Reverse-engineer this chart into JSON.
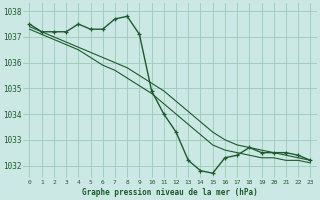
{
  "background_color": "#cce8e4",
  "grid_color": "#99ccbb",
  "line_color": "#1a5c2a",
  "title": "Graphe pression niveau de la mer (hPa)",
  "xlim": [
    -0.5,
    23.5
  ],
  "ylim": [
    1031.5,
    1038.3
  ],
  "yticks": [
    1032,
    1033,
    1034,
    1035,
    1036,
    1037,
    1038
  ],
  "xticks": [
    0,
    1,
    2,
    3,
    4,
    5,
    6,
    7,
    8,
    9,
    10,
    11,
    12,
    13,
    14,
    15,
    16,
    17,
    18,
    19,
    20,
    21,
    22,
    23
  ],
  "curve1_x": [
    0,
    1,
    2,
    3,
    4,
    5,
    6,
    7,
    8,
    9,
    10,
    11,
    12,
    13,
    14,
    15,
    16,
    17,
    18,
    19,
    20,
    21,
    22,
    23
  ],
  "curve1_y": [
    1037.5,
    1037.2,
    1037.2,
    1037.2,
    1037.5,
    1037.3,
    1037.3,
    1037.7,
    1037.8,
    1037.1,
    1034.9,
    1034.0,
    1033.3,
    1032.2,
    1031.8,
    1031.7,
    1032.3,
    1032.4,
    1032.7,
    1032.5,
    1032.5,
    1032.5,
    1032.4,
    1032.2
  ],
  "curve2_x": [
    0,
    1,
    2,
    3,
    4,
    5,
    6,
    7,
    8,
    9,
    10,
    11,
    12,
    13,
    14,
    15,
    16,
    17,
    18,
    19,
    20,
    21,
    22,
    23
  ],
  "curve2_y": [
    1037.4,
    1037.2,
    1037.0,
    1036.8,
    1036.6,
    1036.4,
    1036.2,
    1036.0,
    1035.8,
    1035.5,
    1035.2,
    1034.9,
    1034.5,
    1034.1,
    1033.7,
    1033.3,
    1033.0,
    1032.8,
    1032.7,
    1032.6,
    1032.5,
    1032.4,
    1032.3,
    1032.2
  ],
  "curve3_x": [
    0,
    1,
    2,
    3,
    4,
    5,
    6,
    7,
    8,
    9,
    10,
    11,
    12,
    13,
    14,
    15,
    16,
    17,
    18,
    19,
    20,
    21,
    22,
    23
  ],
  "curve3_y": [
    1037.3,
    1037.1,
    1036.9,
    1036.7,
    1036.5,
    1036.2,
    1035.9,
    1035.7,
    1035.4,
    1035.1,
    1034.8,
    1034.4,
    1034.0,
    1033.6,
    1033.2,
    1032.8,
    1032.6,
    1032.5,
    1032.4,
    1032.3,
    1032.3,
    1032.2,
    1032.2,
    1032.1
  ]
}
